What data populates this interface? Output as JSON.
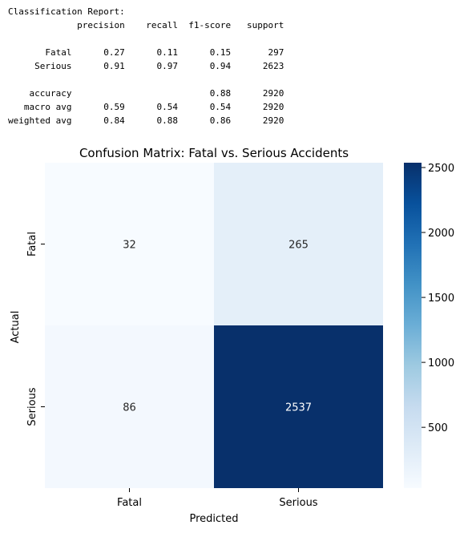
{
  "report": {
    "title": "Classification Report:",
    "columns": [
      "precision",
      "recall",
      "f1-score",
      "support"
    ],
    "rows": [
      {
        "label": "Fatal",
        "precision": "0.27",
        "recall": "0.11",
        "f1": "0.15",
        "support": "297"
      },
      {
        "label": "Serious",
        "precision": "0.91",
        "recall": "0.97",
        "f1": "0.94",
        "support": "2623"
      },
      {
        "label": "accuracy",
        "precision": "",
        "recall": "",
        "f1": "0.88",
        "support": "2920"
      },
      {
        "label": "macro avg",
        "precision": "0.59",
        "recall": "0.54",
        "f1": "0.54",
        "support": "2920"
      },
      {
        "label": "weighted avg",
        "precision": "0.84",
        "recall": "0.88",
        "f1": "0.86",
        "support": "2920"
      }
    ]
  },
  "chart_data": {
    "type": "heatmap",
    "title": "Confusion Matrix: Fatal vs. Serious Accidents",
    "xlabel": "Predicted",
    "ylabel": "Actual",
    "x_categories": [
      "Fatal",
      "Serious"
    ],
    "y_categories": [
      "Fatal",
      "Serious"
    ],
    "values": [
      [
        32,
        265
      ],
      [
        86,
        2537
      ]
    ],
    "colormap": "Blues",
    "colors": [
      "#f7fbff",
      "#deebf7",
      "#c6dbef",
      "#9ecae1",
      "#6baed6",
      "#4292c6",
      "#2171b5",
      "#08519c",
      "#08306b"
    ],
    "colorbar_ticks": [
      500,
      1000,
      1500,
      2000,
      2500
    ],
    "vmin": 32,
    "vmax": 2537
  }
}
